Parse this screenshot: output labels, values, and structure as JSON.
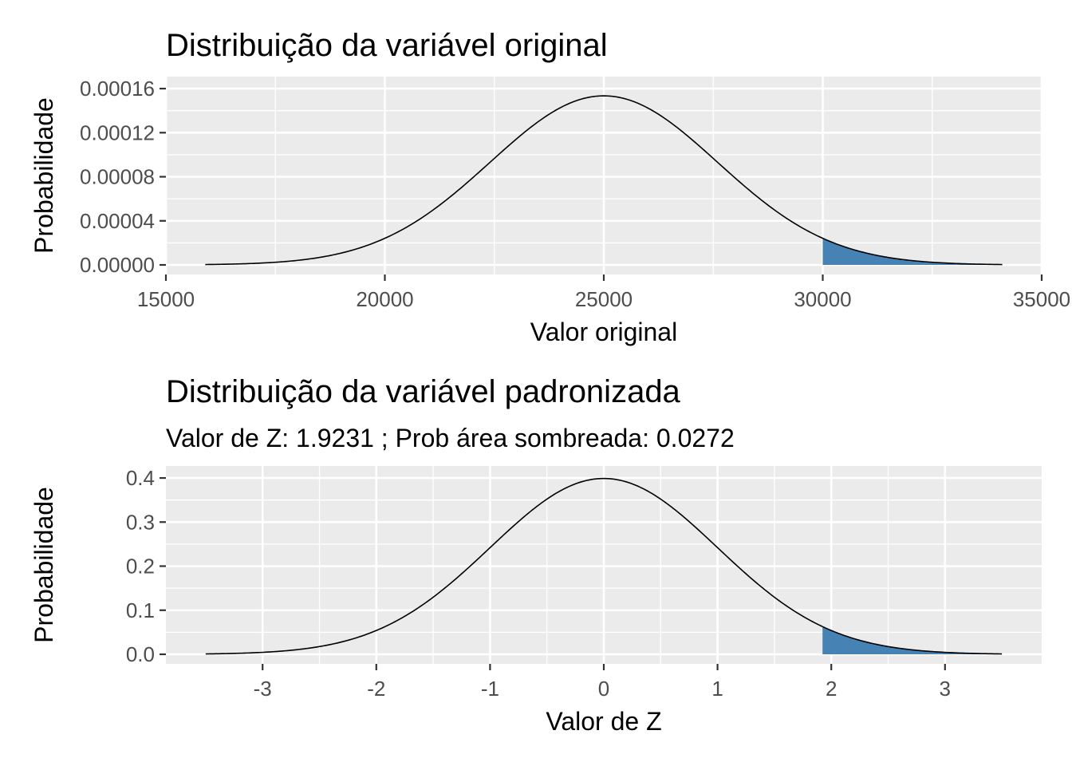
{
  "chart_data": [
    {
      "type": "area",
      "title": "Distribuição da variável original",
      "subtitle": "",
      "xlabel": "Valor original",
      "ylabel": "Probabilidade",
      "distribution": "normal",
      "mean": 25000,
      "sd": 2600,
      "x_range": [
        15900,
        34100
      ],
      "xlim": [
        15000,
        35000
      ],
      "ylim": [
        0,
        0.00016
      ],
      "x_ticks": [
        15000,
        20000,
        25000,
        30000,
        35000
      ],
      "x_tick_labels": [
        "15000",
        "20000",
        "25000",
        "30000",
        "35000"
      ],
      "y_ticks": [
        0,
        4e-05,
        8e-05,
        0.00012,
        0.00016
      ],
      "y_tick_labels": [
        "0.00000",
        "0.00004",
        "0.00008",
        "0.00012",
        "0.00016"
      ],
      "shaded_from": 30000,
      "shaded_to": 34100,
      "grid": true,
      "legend": "none"
    },
    {
      "type": "area",
      "title": "Distribuição da variável padronizada",
      "subtitle": "Valor de Z: 1.9231 ; Prob área sombreada: 0.0272",
      "xlabel": "Valor de Z",
      "ylabel": "Probabilidade",
      "distribution": "normal",
      "mean": 0,
      "sd": 1,
      "x_range": [
        -3.5,
        3.5
      ],
      "xlim": [
        -3.85,
        3.85
      ],
      "ylim": [
        0,
        0.4
      ],
      "x_ticks": [
        -3,
        -2,
        -1,
        0,
        1,
        2,
        3
      ],
      "x_tick_labels": [
        "-3",
        "-2",
        "-1",
        "0",
        "1",
        "2",
        "3"
      ],
      "y_ticks": [
        0,
        0.1,
        0.2,
        0.3,
        0.4
      ],
      "y_tick_labels": [
        "0.0",
        "0.1",
        "0.2",
        "0.3",
        "0.4"
      ],
      "shaded_from": 1.9231,
      "shaded_to": 3.5,
      "grid": true,
      "legend": "none"
    }
  ],
  "colors": {
    "panel_background": "#ebebeb",
    "grid": "#ffffff",
    "shade": "#4682b4",
    "curve": "#000000",
    "tick_label": "#4d4d4d"
  }
}
